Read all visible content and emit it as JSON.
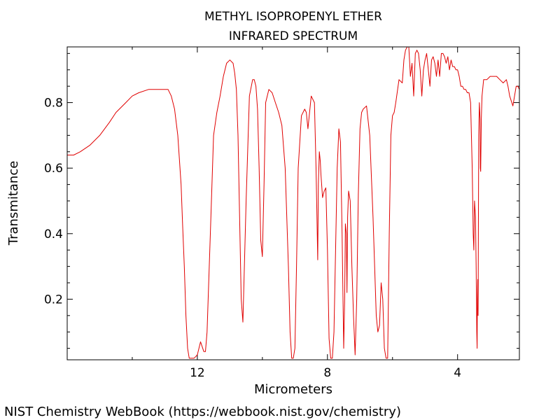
{
  "chart_data": {
    "type": "line",
    "title": "METHYL ISOPROPENYL ETHER",
    "subtitle": "INFRARED SPECTRUM",
    "xlabel": "Micrometers",
    "ylabel": "Transmitance",
    "xlim": [
      16,
      2.1
    ],
    "ylim": [
      0.015,
      0.97
    ],
    "x_reversed": true,
    "x_ticks": [
      12,
      8,
      4
    ],
    "y_ticks": [
      0.2,
      0.4,
      0.6,
      0.8
    ],
    "grid": false,
    "line_color": "#e00000",
    "series": [
      {
        "x": [
          16.0,
          15.8,
          15.6,
          15.3,
          15.0,
          14.7,
          14.5,
          14.2,
          14.0,
          13.8,
          13.5,
          13.3,
          13.1,
          13.0,
          12.9,
          12.8,
          12.7,
          12.6,
          12.5,
          12.45,
          12.4,
          12.35,
          12.3,
          12.25,
          12.2,
          12.15,
          12.1,
          12.0,
          11.9,
          11.8,
          11.75,
          11.7,
          11.6,
          11.5,
          11.4,
          11.3,
          11.2,
          11.1,
          11.0,
          10.9,
          10.85,
          10.8,
          10.75,
          10.7,
          10.65,
          10.6,
          10.5,
          10.4,
          10.3,
          10.25,
          10.2,
          10.15,
          10.1,
          10.05,
          10.0,
          9.95,
          9.9,
          9.8,
          9.7,
          9.6,
          9.5,
          9.4,
          9.3,
          9.2,
          9.15,
          9.1,
          9.05,
          9.0,
          8.95,
          8.9,
          8.8,
          8.7,
          8.65,
          8.6,
          8.5,
          8.4,
          8.35,
          8.3,
          8.28,
          8.25,
          8.22,
          8.2,
          8.15,
          8.1,
          8.05,
          8.0,
          7.95,
          7.9,
          7.85,
          7.8,
          7.75,
          7.7,
          7.65,
          7.6,
          7.55,
          7.5,
          7.47,
          7.45,
          7.42,
          7.4,
          7.38,
          7.35,
          7.3,
          7.25,
          7.2,
          7.15,
          7.1,
          7.05,
          7.0,
          6.95,
          6.9,
          6.8,
          6.7,
          6.6,
          6.5,
          6.45,
          6.4,
          6.35,
          6.3,
          6.25,
          6.2,
          6.15,
          6.1,
          6.05,
          6.0,
          5.95,
          5.9,
          5.8,
          5.7,
          5.65,
          5.6,
          5.55,
          5.5,
          5.45,
          5.4,
          5.35,
          5.3,
          5.25,
          5.2,
          5.15,
          5.1,
          5.05,
          5.0,
          4.95,
          4.9,
          4.85,
          4.8,
          4.75,
          4.7,
          4.65,
          4.6,
          4.55,
          4.5,
          4.45,
          4.4,
          4.35,
          4.3,
          4.25,
          4.2,
          4.15,
          4.1,
          4.05,
          4.0,
          3.95,
          3.9,
          3.85,
          3.8,
          3.75,
          3.7,
          3.65,
          3.6,
          3.55,
          3.52,
          3.5,
          3.48,
          3.45,
          3.43,
          3.41,
          3.4,
          3.39,
          3.38,
          3.37,
          3.36,
          3.35,
          3.33,
          3.31,
          3.3,
          3.29,
          3.27,
          3.25,
          3.2,
          3.1,
          3.0,
          2.9,
          2.8,
          2.7,
          2.6,
          2.5,
          2.45,
          2.4,
          2.3,
          2.2,
          2.15,
          2.1
        ],
        "y": [
          0.64,
          0.64,
          0.65,
          0.67,
          0.7,
          0.74,
          0.77,
          0.8,
          0.82,
          0.83,
          0.84,
          0.84,
          0.84,
          0.84,
          0.84,
          0.82,
          0.78,
          0.7,
          0.55,
          0.42,
          0.3,
          0.15,
          0.05,
          0.02,
          0.02,
          0.02,
          0.02,
          0.03,
          0.07,
          0.04,
          0.04,
          0.1,
          0.4,
          0.7,
          0.77,
          0.82,
          0.88,
          0.92,
          0.93,
          0.92,
          0.89,
          0.84,
          0.7,
          0.45,
          0.2,
          0.13,
          0.5,
          0.82,
          0.87,
          0.87,
          0.85,
          0.78,
          0.6,
          0.38,
          0.33,
          0.55,
          0.8,
          0.84,
          0.83,
          0.8,
          0.77,
          0.73,
          0.6,
          0.3,
          0.1,
          0.02,
          0.02,
          0.05,
          0.3,
          0.6,
          0.76,
          0.78,
          0.77,
          0.72,
          0.82,
          0.8,
          0.6,
          0.32,
          0.55,
          0.65,
          0.62,
          0.58,
          0.51,
          0.53,
          0.54,
          0.35,
          0.08,
          0.02,
          0.02,
          0.1,
          0.35,
          0.6,
          0.72,
          0.68,
          0.4,
          0.05,
          0.2,
          0.43,
          0.4,
          0.22,
          0.45,
          0.53,
          0.5,
          0.3,
          0.15,
          0.03,
          0.2,
          0.52,
          0.72,
          0.77,
          0.78,
          0.79,
          0.7,
          0.45,
          0.15,
          0.1,
          0.12,
          0.25,
          0.2,
          0.05,
          0.02,
          0.02,
          0.4,
          0.7,
          0.76,
          0.77,
          0.8,
          0.87,
          0.86,
          0.93,
          0.96,
          0.97,
          0.97,
          0.88,
          0.92,
          0.82,
          0.95,
          0.96,
          0.95,
          0.9,
          0.82,
          0.9,
          0.93,
          0.95,
          0.9,
          0.85,
          0.93,
          0.94,
          0.92,
          0.88,
          0.93,
          0.88,
          0.95,
          0.95,
          0.94,
          0.92,
          0.94,
          0.9,
          0.93,
          0.91,
          0.91,
          0.9,
          0.9,
          0.88,
          0.85,
          0.85,
          0.84,
          0.84,
          0.83,
          0.83,
          0.8,
          0.6,
          0.4,
          0.35,
          0.5,
          0.45,
          0.3,
          0.1,
          0.05,
          0.2,
          0.26,
          0.15,
          0.4,
          0.7,
          0.8,
          0.75,
          0.6,
          0.59,
          0.75,
          0.82,
          0.87,
          0.87,
          0.88,
          0.88,
          0.88,
          0.87,
          0.86,
          0.87,
          0.85,
          0.82,
          0.79,
          0.85,
          0.85,
          0.84
        ]
      }
    ]
  },
  "footer": {
    "credit": "NIST Chemistry WebBook (https://webbook.nist.gov/chemistry)"
  }
}
